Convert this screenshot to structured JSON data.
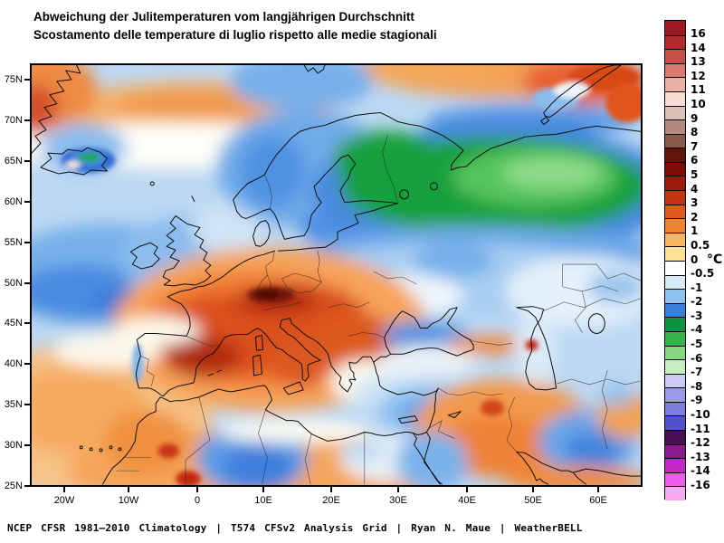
{
  "title": {
    "line1": "Abweichung der Julitemperaturen vom langjährigen Durchschnitt",
    "line2": "Scostamento delle temperature di luglio rispetto alle medie stagionali"
  },
  "footer": "NCEP CFSR 1981–2010 Climatology | T574 CFSv2 Analysis Grid | Ryan N. Maue | WeatherBELL",
  "axes": {
    "lat_ticks": [
      "75N",
      "70N",
      "65N",
      "60N",
      "55N",
      "50N",
      "45N",
      "40N",
      "35N",
      "30N",
      "25N"
    ],
    "lon_ticks": [
      "20W",
      "10W",
      "0",
      "10E",
      "20E",
      "30E",
      "40E",
      "50E",
      "60E"
    ]
  },
  "colorbar": {
    "unit": "°C",
    "boundary_labels": [
      "16",
      "14",
      "13",
      "12",
      "11",
      "10",
      "9",
      "8",
      "7",
      "6",
      "5",
      "4",
      "3",
      "2",
      "1",
      "0.5",
      "0",
      "-0.5",
      "-1",
      "-2",
      "-3",
      "-4",
      "-5",
      "-6",
      "-7",
      "-8",
      "-9",
      "-10",
      "-11",
      "-12",
      "-13",
      "-14",
      "-16"
    ],
    "cell_colors": [
      "#9e1a22",
      "#b02c2a",
      "#c44f44",
      "#d97b6e",
      "#edb0a4",
      "#f7ddd2",
      "#d9c2b8",
      "#b2897c",
      "#8a5a4a",
      "#5e150a",
      "#7e0c04",
      "#9c1a0a",
      "#c33414",
      "#e0591e",
      "#f08432",
      "#f8b45e",
      "#fbe294",
      "#ffffff",
      "#d8ebf8",
      "#8fc2ee",
      "#3c7ede",
      "#0f9340",
      "#35b54a",
      "#85d880",
      "#c6eec2",
      "#ccccf2",
      "#9a9aea",
      "#7d7de0",
      "#5252cc",
      "#47104e",
      "#8b1a8b",
      "#c428c4",
      "#ee5cee",
      "#f7aaf2"
    ]
  },
  "map_regions": [
    {
      "area": "Central and western Europe (Spain, France, Alps, Balkans)",
      "anomaly": "strong positive, +2 to +7"
    },
    {
      "area": "Northwest Russia and Finland",
      "anomaly": "strong negative, -3 to -6 (green)"
    },
    {
      "area": "British Isles, Scandinavia, North Atlantic",
      "anomaly": "negative, -1 to -3"
    },
    {
      "area": "Iceland",
      "anomaly": "negative, down to -4"
    },
    {
      "area": "Algeria / Libya interior",
      "anomaly": "negative, -1 to -3"
    },
    {
      "area": "Arctic edge and Novaya Zemlya",
      "anomaly": "positive, +2 to +5"
    },
    {
      "area": "Middle East",
      "anomaly": "positive, +1 to +3"
    },
    {
      "area": "Eastern Mediterranean, Egypt, eastern Iran",
      "anomaly": "negative, -1 to -3"
    }
  ]
}
